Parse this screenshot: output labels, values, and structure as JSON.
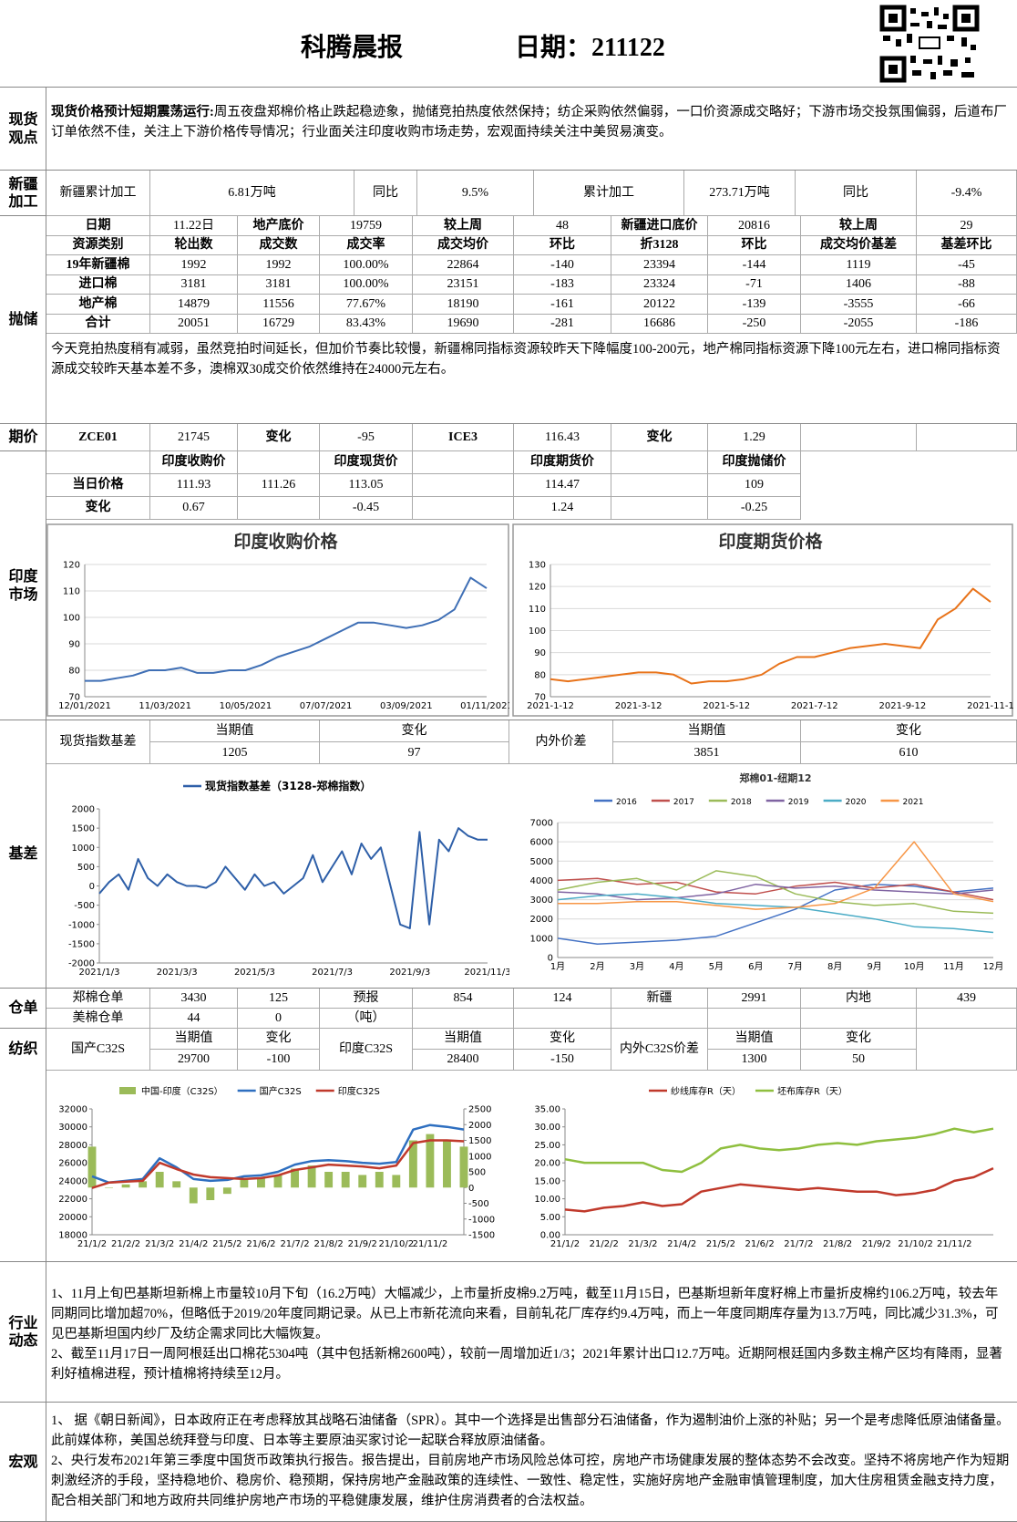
{
  "header": {
    "title": "科腾晨报",
    "date": "日期：211122"
  },
  "spot": {
    "label": "现货观点",
    "lead": "现货价格预计短期震荡运行:",
    "text": "周五夜盘郑棉价格止跌起稳迹象，抛储竞拍热度依然保持；纺企采购依然偏弱，一口价资源成交略好；下游市场交投氛围偏弱，后道布厂订单依然不佳，关注上下游价格传导情况；行业面关注印度收购市场走势，宏观面持续关注中美贸易演变。"
  },
  "xinjiang": {
    "label": "新疆加工",
    "row": [
      "新疆累计加工",
      "6.81万吨",
      "同比",
      "9.5%",
      "累计加工",
      "273.71万吨",
      "同比",
      "-9.4%"
    ]
  },
  "reserve": {
    "label": "抛储",
    "rows": [
      [
        "日期",
        "11.22日",
        "地产底价",
        "19759",
        "较上周",
        "48",
        "新疆进口底价",
        "20816",
        "较上周",
        "29"
      ],
      [
        "资源类别",
        "轮出数",
        "成交数",
        "成交率",
        "成交均价",
        "环比",
        "折3128",
        "环比",
        "成交均价基差",
        "基差环比"
      ],
      [
        "19年新疆棉",
        "1992",
        "1992",
        "100.00%",
        "22864",
        "-140",
        "23394",
        "-144",
        "1119",
        "-45"
      ],
      [
        "进口棉",
        "3181",
        "3181",
        "100.00%",
        "23151",
        "-183",
        "23324",
        "-71",
        "1406",
        "-88"
      ],
      [
        "地产棉",
        "14879",
        "11556",
        "77.67%",
        "18190",
        "-161",
        "20122",
        "-139",
        "-3555",
        "-66"
      ],
      [
        "合计",
        "20051",
        "16729",
        "83.43%",
        "19690",
        "-281",
        "16686",
        "-250",
        "-2055",
        "-186"
      ]
    ],
    "note": "今天竞拍热度稍有减弱，虽然竞拍时间延长，但加价节奏比较慢，新疆棉同指标资源较昨天下降幅度100-200元，地产棉同指标资源下降100元左右，进口棉同指标资源成交较昨天基本差不多，澳棉双30成交价依然维持在24000元左右。"
  },
  "futures": {
    "label": "期价",
    "row": [
      "ZCE01",
      "21745",
      "变化",
      "-95",
      "ICE3",
      "116.43",
      "变化",
      "1.29"
    ]
  },
  "india": {
    "label": "印度市场",
    "rows": [
      [
        null,
        "印度收购价",
        null,
        "印度现货价",
        null,
        "印度期货价",
        null,
        "印度抛储价"
      ],
      [
        "当日价格",
        "111.93",
        "111.26",
        "113.05",
        null,
        "114.47",
        null,
        "109"
      ],
      [
        "变化",
        "0.67",
        null,
        "-0.45",
        null,
        "1.24",
        null,
        "-0.25"
      ]
    ],
    "charts": [
      {
        "type": "line",
        "title": "印度收购价格",
        "color": "#3f6fb5",
        "grid": true,
        "ylim": [
          70,
          120
        ],
        "yticks": [
          70,
          80,
          90,
          100,
          110,
          120
        ],
        "categories": [
          "12/01/2021",
          null,
          null,
          null,
          null,
          "11/03/2021",
          null,
          null,
          null,
          null,
          "10/05/2021",
          null,
          null,
          null,
          null,
          "07/07/2021",
          null,
          null,
          null,
          null,
          "03/09/2021",
          null,
          null,
          null,
          null,
          "01/11/2021"
        ],
        "values": [
          76,
          76,
          77,
          78,
          80,
          80,
          81,
          79,
          79,
          80,
          80,
          82,
          85,
          87,
          89,
          92,
          95,
          98,
          98,
          97,
          96,
          97,
          99,
          103,
          115,
          111
        ]
      },
      {
        "type": "line",
        "title": "印度期货价格",
        "color": "#e8731a",
        "grid": true,
        "ylim": [
          70,
          130
        ],
        "yticks": [
          70,
          80,
          90,
          100,
          110,
          120,
          130
        ],
        "categories": [
          "2021-1-12",
          null,
          null,
          null,
          null,
          "2021-3-12",
          null,
          null,
          null,
          null,
          "2021-5-12",
          null,
          null,
          null,
          null,
          "2021-7-12",
          null,
          null,
          null,
          null,
          "2021-9-12",
          null,
          null,
          null,
          null,
          "2021-11-1"
        ],
        "values": [
          78,
          77,
          78,
          79,
          80,
          81,
          81,
          80,
          76,
          77,
          77,
          78,
          80,
          85,
          88,
          88,
          90,
          92,
          93,
          94,
          93,
          92,
          105,
          110,
          119,
          113
        ]
      }
    ]
  },
  "basis": {
    "label": "基差",
    "groups": [
      {
        "label": "现货指数基差",
        "headers": [
          "当期值",
          "变化"
        ],
        "values": [
          "1205",
          "97"
        ]
      },
      {
        "label": "内外价差",
        "headers": [
          "当期值",
          "变化"
        ],
        "values": [
          "3851",
          "610"
        ]
      }
    ],
    "charts": [
      {
        "type": "line",
        "ylim": [
          -2000,
          2000
        ],
        "yticks": [
          -2000,
          -1500,
          -1000,
          -500,
          0,
          500,
          1000,
          1500,
          2000
        ],
        "categories": [
          "2021/1/3",
          null,
          null,
          null,
          null,
          null,
          null,
          null,
          "2021/3/3",
          null,
          null,
          null,
          null,
          null,
          null,
          null,
          "2021/5/3",
          null,
          null,
          null,
          null,
          null,
          null,
          null,
          "2021/7/3",
          null,
          null,
          null,
          null,
          null,
          null,
          null,
          "2021/9/3",
          null,
          null,
          null,
          null,
          null,
          null,
          null,
          "2021/11/3"
        ],
        "series": [
          {
            "name": "现货指数基差（3128-郑棉指数）",
            "color": "#2e5fa8",
            "values": [
              -200,
              100,
              300,
              -100,
              700,
              200,
              0,
              300,
              100,
              0,
              0,
              -50,
              100,
              500,
              200,
              -100,
              300,
              0,
              100,
              -200,
              0,
              200,
              800,
              100,
              500,
              900,
              300,
              1100,
              700,
              1000,
              0,
              -1000,
              -1100,
              1400,
              -1000,
              1200,
              900,
              1500,
              1300,
              1200,
              1200
            ]
          }
        ]
      },
      {
        "type": "line",
        "title": "郑棉01-纽期12",
        "grid": true,
        "ylim": [
          0,
          7000
        ],
        "yticks": [
          0,
          1000,
          2000,
          3000,
          4000,
          5000,
          6000,
          7000
        ],
        "categories": [
          "1月",
          "2月",
          "3月",
          "4月",
          "5月",
          "6月",
          "7月",
          "8月",
          "9月",
          "10月",
          "11月",
          "12月"
        ],
        "series": [
          {
            "name": "2016",
            "color": "#4472c4",
            "values": [
              1000,
              700,
              800,
              900,
              1100,
              1800,
              2500,
              3500,
              3800,
              3700,
              3400,
              3600
            ]
          },
          {
            "name": "2017",
            "color": "#c0504d",
            "values": [
              4000,
              4100,
              3800,
              3900,
              3400,
              3300,
              3700,
              3900,
              3600,
              3800,
              3400,
              3000
            ]
          },
          {
            "name": "2018",
            "color": "#9bbb59",
            "values": [
              3500,
              3900,
              4100,
              3500,
              4500,
              4200,
              3300,
              2900,
              2700,
              2800,
              2400,
              2300
            ]
          },
          {
            "name": "2019",
            "color": "#8064a2",
            "values": [
              3400,
              3300,
              3000,
              3100,
              3300,
              3800,
              3600,
              3700,
              3500,
              3400,
              3300,
              3500
            ]
          },
          {
            "name": "2020",
            "color": "#4bacc6",
            "values": [
              3000,
              3200,
              3300,
              3100,
              2800,
              2700,
              2600,
              2300,
              2000,
              1600,
              1500,
              1300
            ]
          },
          {
            "name": "2021",
            "color": "#f79646",
            "values": [
              2800,
              2800,
              2900,
              2900,
              2700,
              2500,
              2600,
              2800,
              3600,
              6000,
              3300,
              2900
            ]
          }
        ]
      }
    ]
  },
  "warehouse": {
    "label": "仓单",
    "rows": [
      [
        "郑棉仓单",
        "3430",
        "125",
        "预报",
        "854",
        "124",
        "新疆",
        "2991",
        "内地",
        "439"
      ],
      [
        "美棉仓单",
        "44",
        "0",
        "（吨）"
      ]
    ]
  },
  "textile": {
    "label": "纺织",
    "groups": [
      {
        "label": "国产C32S",
        "headers": [
          "当期值",
          "变化"
        ],
        "values": [
          "29700",
          "-100"
        ]
      },
      {
        "label": "印度C32S",
        "headers": [
          "当期值",
          "变化"
        ],
        "values": [
          "28400",
          "-150"
        ]
      },
      {
        "label": "内外C32S价差",
        "headers": [
          "当期值",
          "变化"
        ],
        "values": [
          "1300",
          "50"
        ]
      }
    ],
    "charts": [
      {
        "type": "combo",
        "ylim": [
          18000,
          32000
        ],
        "yticks": [
          18000,
          20000,
          22000,
          24000,
          26000,
          28000,
          30000,
          32000
        ],
        "y2lim": [
          -1500,
          2500
        ],
        "y2ticks": [
          -1500,
          -1000,
          -500,
          0,
          500,
          1000,
          1500,
          2000,
          2500
        ],
        "categories": [
          "21/1/2",
          null,
          "21/2/2",
          null,
          "21/3/2",
          null,
          "21/4/2",
          null,
          "21/5/2",
          null,
          "21/6/2",
          null,
          "21/7/2",
          null,
          "21/8/2",
          null,
          "21/9/2",
          null,
          "21/10/2",
          null,
          "21/11/2",
          null,
          null
        ],
        "series": [
          {
            "name": "中国-印度（C32S）",
            "type": "bar",
            "axis": "y2",
            "color": "#9bbb59",
            "values": [
              1300,
              0,
              100,
              200,
              500,
              200,
              -500,
              -400,
              -200,
              300,
              300,
              400,
              600,
              700,
              500,
              500,
              400,
              500,
              400,
              1500,
              1700,
              1500,
              1300
            ]
          },
          {
            "name": "国产C32S",
            "color": "#2e6fc0",
            "values": [
              24500,
              23800,
              24000,
              24200,
              26500,
              25500,
              24200,
              24000,
              24100,
              24500,
              24600,
              25000,
              25800,
              26200,
              26300,
              26200,
              26000,
              25900,
              26100,
              29700,
              30200,
              30000,
              29700
            ]
          },
          {
            "name": "印度C32S",
            "color": "#c0392b",
            "values": [
              23200,
              23800,
              23900,
              24000,
              26000,
              25300,
              24700,
              24400,
              24300,
              24200,
              24300,
              24600,
              25200,
              25500,
              25800,
              25700,
              25600,
              25400,
              25700,
              28200,
              28500,
              28500,
              28400
            ]
          }
        ]
      },
      {
        "type": "line",
        "ylim": [
          0,
          35
        ],
        "yticks": [
          {
            "value": 0,
            "label": "0.00"
          },
          {
            "value": 5,
            "label": "5.00"
          },
          {
            "value": 10,
            "label": "10.00"
          },
          {
            "value": 15,
            "label": "15.00"
          },
          {
            "value": 20,
            "label": "20.00"
          },
          {
            "value": 25,
            "label": "25.00"
          },
          {
            "value": 30,
            "label": "30.00"
          },
          {
            "value": 35,
            "label": "35.00"
          }
        ],
        "categories": [
          "21/1/2",
          null,
          "21/2/2",
          null,
          "21/3/2",
          null,
          "21/4/2",
          null,
          "21/5/2",
          null,
          "21/6/2",
          null,
          "21/7/2",
          null,
          "21/8/2",
          null,
          "21/9/2",
          null,
          "21/10/2",
          null,
          "21/11/2",
          null,
          null
        ],
        "series": [
          {
            "name": "纱线库存R（天）",
            "color": "#c0392b",
            "values": [
              7,
              6.5,
              7.5,
              8,
              9,
              8,
              8.5,
              12,
              13,
              14,
              13.5,
              13,
              12.5,
              13,
              12.5,
              12,
              12,
              11,
              11.5,
              12.5,
              15,
              16,
              18.5
            ]
          },
          {
            "name": "坯布库存R（天）",
            "color": "#8fbf3f",
            "values": [
              21,
              20,
              20,
              20,
              20,
              18,
              17.5,
              20,
              24,
              25,
              24,
              23.5,
              24,
              25,
              25.5,
              25,
              26,
              26.5,
              27,
              28,
              29.5,
              28.5,
              29.5
            ]
          }
        ]
      }
    ]
  },
  "news": {
    "label": "行业动态",
    "paragraphs": [
      "1、11月上旬巴基斯坦新棉上市量较10月下旬（16.2万吨）大幅减少，上市量折皮棉9.2万吨，截至11月15日，巴基斯坦新年度籽棉上市量折皮棉约106.2万吨，较去年同期同比增加超70%，但略低于2019/20年度同期记录。从已上市新花流向来看，目前轧花厂库存约9.4万吨，而上一年度同期库存量为13.7万吨，同比减少31.3%，可见巴基斯坦国内纱厂及纺企需求同比大幅恢复。",
      "2、截至11月17日一周阿根廷出口棉花5304吨（其中包括新棉2600吨），较前一周增加近1/3；2021年累计出口12.7万吨。近期阿根廷国内多数主棉产区均有降雨，显著利好植棉进程，预计植棉将持续至12月。"
    ]
  },
  "macro": {
    "label": "宏观",
    "paragraphs": [
      "1、 据《朝日新闻》，日本政府正在考虑释放其战略石油储备（SPR）。其中一个选择是出售部分石油储备，作为遏制油价上涨的补贴；另一个是考虑降低原油储备量。此前媒体称，美国总统拜登与印度、日本等主要原油买家讨论一起联合释放原油储备。",
      "2、央行发布2021年第三季度中国货币政策执行报告。报告提出，目前房地产市场风险总体可控，房地产市场健康发展的整体态势不会改变。坚持不将房地产作为短期刺激经济的手段，坚持稳地价、稳房价、稳预期，保持房地产金融政策的连续性、一致性、稳定性，实施好房地产金融审慎管理制度，加大住房租赁金融支持力度，配合相关部门和地方政府共同维护房地产市场的平稳健康发展，维护住房消费者的合法权益。"
    ]
  }
}
